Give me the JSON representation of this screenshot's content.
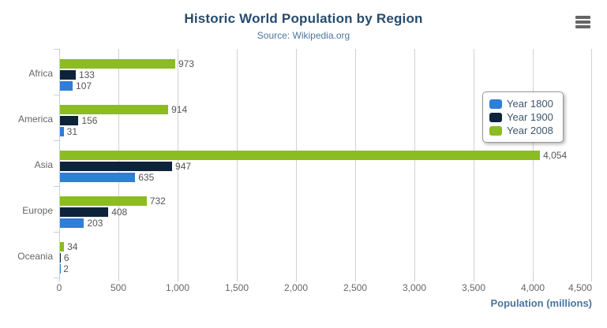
{
  "chart_data": {
    "type": "bar",
    "orientation": "horizontal",
    "title": "Historic World Population by Region",
    "subtitle": "Source: Wikipedia.org",
    "categories": [
      "Africa",
      "America",
      "Asia",
      "Europe",
      "Oceania"
    ],
    "series": [
      {
        "name": "Year 1800",
        "color": "#2f7ed8",
        "values": [
          107,
          31,
          635,
          203,
          2
        ]
      },
      {
        "name": "Year 1900",
        "color": "#0d233a",
        "values": [
          133,
          156,
          947,
          408,
          6
        ]
      },
      {
        "name": "Year 2008",
        "color": "#8bbc21",
        "values": [
          973,
          914,
          4054,
          732,
          34
        ]
      }
    ],
    "bar_display_order_top_to_bottom": [
      "Year 2008",
      "Year 1900",
      "Year 1800"
    ],
    "xlabel": "Population (millions)",
    "ylabel": "",
    "xlim": [
      0,
      4500
    ],
    "ticks": [
      0,
      500,
      1000,
      1500,
      2000,
      2500,
      3000,
      3500,
      4000,
      4500
    ],
    "grid": true,
    "data_labels": true,
    "legend_position": "right-middle"
  },
  "palette": {
    "title_color": "#274b6d",
    "subtitle_color": "#4d759e",
    "axis_title_color": "#4d759e",
    "axis_label_color": "#666666",
    "data_label_color": "#555555",
    "gridline_color": "#d2d2d2",
    "axis_line_color": "#c0d0e0",
    "legend_border_color": "#999999",
    "legend_text_color": "#3e576f",
    "export_icon_color": "#666666",
    "background": "#ffffff"
  }
}
